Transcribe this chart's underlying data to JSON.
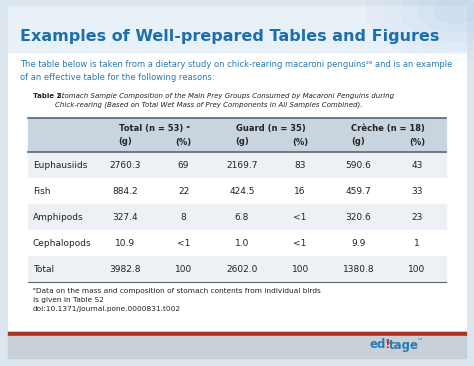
{
  "title": "Examples of Well-prepared Tables and Figures",
  "title_color": "#1b6fac",
  "subtitle": "The table below is taken from a dietary study on chick-rearing macaroni penguins²⁶ and is an example\nof an effective table for the following reasons:",
  "subtitle_color": "#2a7ab5",
  "table_caption_bold": "Table 2.",
  "table_caption_rest": " Stomach Sample Composition of the Main Prey Groups Consumed by Macaroni Penguins during\nChick-rearing (Based on Total Wet Mass of Prey Components in All Samples Combined).",
  "col_header1": "Total (n = 53) ᵃ",
  "col_header2": "Guard (n = 35)",
  "col_header3": "Crèche (n = 18)",
  "col_subheaders": [
    "(g)",
    "(%)",
    "(g)",
    "(%)",
    "(g)",
    "(%)"
  ],
  "rows": [
    [
      "Euphausiids",
      "2760.3",
      "69",
      "2169.7",
      "83",
      "590.6",
      "43"
    ],
    [
      "Fish",
      "884.2",
      "22",
      "424.5",
      "16",
      "459.7",
      "33"
    ],
    [
      "Amphipods",
      "327.4",
      "8",
      "6.8",
      "<1",
      "320.6",
      "23"
    ],
    [
      "Cephalopods",
      "10.9",
      "<1",
      "1.0",
      "<1",
      "9.9",
      "1"
    ],
    [
      "Total",
      "3982.8",
      "100",
      "2602.0",
      "100",
      "1380.8",
      "100"
    ]
  ],
  "footnote_line1": "ᵃData on the mass and composition of stomach contents from individual birds",
  "footnote_line2": "is given in Table S2",
  "footnote_line3": "doi:10.1371/journal.pone.0000831.t002",
  "outer_bg": "#dce6ef",
  "card_bg": "#ffffff",
  "top_band_bg": "#e8f0f8",
  "header_bg": "#c8d4de",
  "stripe_bg": "#edf1f5",
  "white_bg": "#ffffff",
  "border_color": "#9aabb8",
  "text_dark": "#222222",
  "red_bar": "#b03020",
  "gray_bar": "#c8d0d8",
  "logo_blue": "#2a7ab5",
  "logo_red": "#c0392b"
}
